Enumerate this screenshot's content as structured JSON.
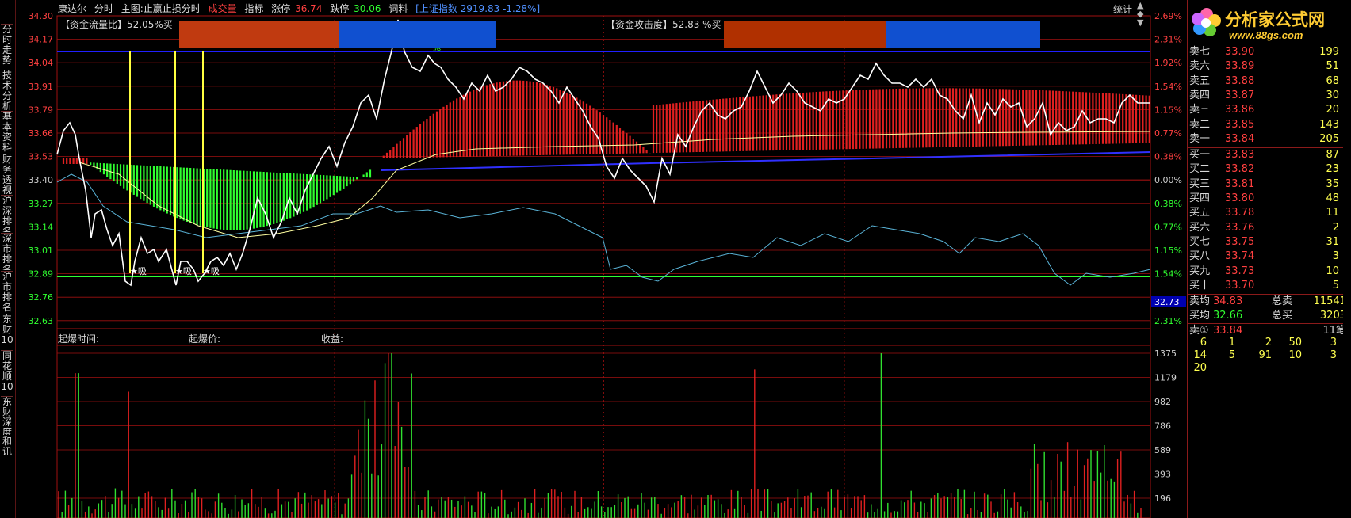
{
  "header": {
    "stock_name": "康达尔",
    "items": [
      "分时",
      "主图:止赢止损分时"
    ],
    "chengjiao": "成交量",
    "zhibiao": "指标",
    "zhangting_label": "涨停",
    "zhangting_value": "36.74",
    "dieting_label": "跌停",
    "dieting_value": "30.06",
    "cilíao": "词料",
    "index_text": "[上证指数 2919.83 -1.28%]",
    "tongji": "统计"
  },
  "left_nav": [
    {
      "label": "分时走势"
    },
    {
      "label": "技术分析"
    },
    {
      "label": "基本资料"
    },
    {
      "label": "财务透视"
    },
    {
      "label": "沪深排名"
    },
    {
      "label": "深市排名"
    },
    {
      "label": "沪市排名"
    },
    {
      "label": "东财10"
    },
    {
      "label": "同花顺10"
    },
    {
      "label": "东财深度"
    },
    {
      "label": "和讯"
    }
  ],
  "indicators": {
    "flow_ratio_label": "【资金流量比】52.05%买",
    "attack_label": "【资金攻击度】52.83 %买"
  },
  "subpanel": {
    "qibao_time": "起爆时间:",
    "qibao_price": "起爆价:",
    "shouyi": "收益:"
  },
  "markers": {
    "buy": "★吸",
    "sell1": "抛",
    "sell2": "抛"
  },
  "chart_data": {
    "type": "line",
    "price_axis": [
      "34.30",
      "34.17",
      "34.04",
      "33.91",
      "33.79",
      "33.66",
      "33.53",
      "33.40",
      "33.27",
      "33.14",
      "33.01",
      "32.89",
      "32.76",
      "32.63"
    ],
    "pct_axis": [
      "2.69%",
      "2.31%",
      "1.92%",
      "1.54%",
      "1.15%",
      "0.77%",
      "0.38%",
      "0.00%",
      "0.38%",
      "0.77%",
      "1.15%",
      "1.54%",
      "",
      "2.31%"
    ],
    "current_price_tag": "32.73",
    "volume_axis": [
      "1375",
      "1179",
      "982",
      "786",
      "589",
      "393",
      "196"
    ],
    "price_range": [
      32.57,
      34.33
    ],
    "volume_range": [
      0,
      1375
    ]
  },
  "orderbook": {
    "asks": [
      {
        "label": "卖七",
        "price": "33.90",
        "vol": "199"
      },
      {
        "label": "卖六",
        "price": "33.89",
        "vol": "51"
      },
      {
        "label": "卖五",
        "price": "33.88",
        "vol": "68"
      },
      {
        "label": "卖四",
        "price": "33.87",
        "vol": "30"
      },
      {
        "label": "卖三",
        "price": "33.86",
        "vol": "20"
      },
      {
        "label": "卖二",
        "price": "33.85",
        "vol": "143"
      },
      {
        "label": "卖一",
        "price": "33.84",
        "vol": "205"
      }
    ],
    "bids": [
      {
        "label": "买一",
        "price": "33.83",
        "vol": "87"
      },
      {
        "label": "买二",
        "price": "33.82",
        "vol": "23"
      },
      {
        "label": "买三",
        "price": "33.81",
        "vol": "35"
      },
      {
        "label": "买四",
        "price": "33.80",
        "vol": "48"
      },
      {
        "label": "买五",
        "price": "33.78",
        "vol": "11"
      },
      {
        "label": "买六",
        "price": "33.76",
        "vol": "2"
      },
      {
        "label": "买七",
        "price": "33.75",
        "vol": "31"
      },
      {
        "label": "买八",
        "price": "33.74",
        "vol": "3"
      },
      {
        "label": "买九",
        "price": "33.73",
        "vol": "10"
      },
      {
        "label": "买十",
        "price": "33.70",
        "vol": "5"
      }
    ],
    "sell_avg_label": "卖均",
    "sell_avg": "34.83",
    "total_sell_label": "总卖",
    "total_sell": "11541",
    "buy_avg_label": "买均",
    "buy_avg": "32.66",
    "total_buy_label": "总买",
    "total_buy": "3203",
    "sell0_label": "卖①",
    "sell0_price": "33.84",
    "trades": "11笔",
    "ticks": [
      [
        "6",
        "1",
        "2",
        "50",
        "3"
      ],
      [
        "14",
        "5",
        "91",
        "10",
        "3"
      ],
      [
        "20",
        "",
        "",
        "",
        ""
      ]
    ]
  },
  "logo": {
    "name": "分析家公式网",
    "url": "www.88gs.com"
  },
  "colors": {
    "up": "#ff3030",
    "down": "#30ff30",
    "accent": "#ffff50"
  }
}
